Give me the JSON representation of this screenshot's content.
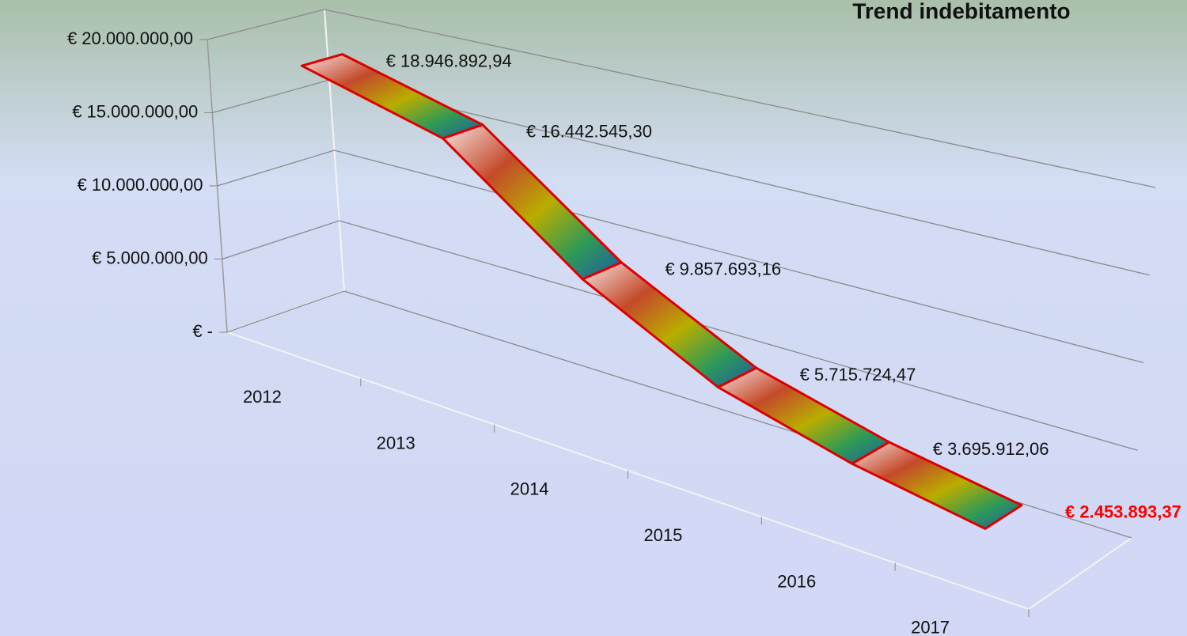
{
  "chart_data": {
    "type": "line3d",
    "title": "Trend indebitamento",
    "categories": [
      "2012",
      "2013",
      "2014",
      "2015",
      "2016",
      "2017"
    ],
    "values": [
      18946892.94,
      16442545.3,
      9857693.16,
      5715724.47,
      3695912.06,
      2453893.37
    ],
    "value_labels": [
      "€ 18.946.892,94",
      "€ 16.442.545,30",
      "€ 9.857.693,16",
      "€ 5.715.724,47",
      "€ 3.695.912,06",
      "€ 2.453.893,37"
    ],
    "ylim": [
      0,
      20000000
    ],
    "yticks": [
      {
        "value": 0,
        "label": "€ -"
      },
      {
        "value": 5000000,
        "label": "€ 5.000.000,00"
      },
      {
        "value": 10000000,
        "label": "€ 10.000.000,00"
      },
      {
        "value": 15000000,
        "label": "€ 15.000.000,00"
      },
      {
        "value": 20000000,
        "label": "€ 20.000.000,00"
      }
    ],
    "grid": true,
    "line_color": "#dd0000",
    "highlight_color": "#ff0000"
  }
}
